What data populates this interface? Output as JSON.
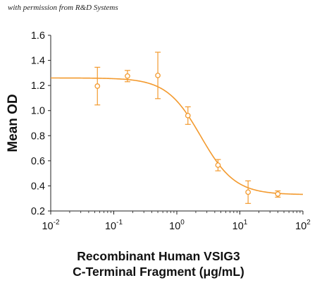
{
  "watermark": "with permission from R&D Systems",
  "colors": {
    "curve": "#F39A2E",
    "axis": "#222222",
    "text": "#111111"
  },
  "chart_data": {
    "type": "scatter",
    "x_scale": "log",
    "xlim": [
      0.01,
      100
    ],
    "ylim": [
      0.2,
      1.6
    ],
    "xticks": [
      {
        "value": 0.01,
        "base": "10",
        "exp": "-2"
      },
      {
        "value": 0.1,
        "base": "10",
        "exp": "-1"
      },
      {
        "value": 1,
        "base": "10",
        "exp": "0"
      },
      {
        "value": 10,
        "base": "10",
        "exp": "1"
      },
      {
        "value": 100,
        "base": "10",
        "exp": "2"
      }
    ],
    "yticks": [
      "0.2",
      "0.4",
      "0.6",
      "0.8",
      "1.0",
      "1.2",
      "1.4",
      "1.6"
    ],
    "ylabel": "Mean OD",
    "xlabel_lines": [
      "Recombinant Human VSIG3",
      "C-Terminal Fragment (μg/mL)"
    ],
    "grid": false,
    "points": [
      {
        "x": 0.055,
        "y": 1.195,
        "err": 0.15
      },
      {
        "x": 0.165,
        "y": 1.275,
        "err": 0.045
      },
      {
        "x": 0.5,
        "y": 1.28,
        "err": 0.185
      },
      {
        "x": 1.5,
        "y": 0.96,
        "err": 0.07
      },
      {
        "x": 4.5,
        "y": 0.565,
        "err": 0.045
      },
      {
        "x": 13.5,
        "y": 0.35,
        "err": 0.09
      },
      {
        "x": 40,
        "y": 0.335,
        "err": 0.025
      }
    ],
    "fit": {
      "top": 1.26,
      "bottom": 0.33,
      "ec50": 2.4,
      "hill": 1.6
    }
  }
}
